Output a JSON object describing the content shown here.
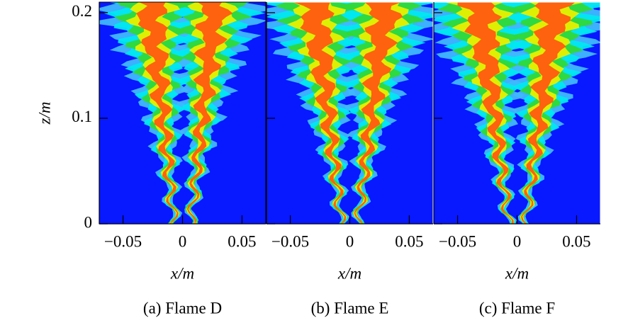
{
  "chart_data": [
    {
      "type": "contour",
      "title": "(a) Flame D",
      "xlabel": "x/m",
      "ylabel": "z/m",
      "xlim": [
        -0.07,
        0.07
      ],
      "ylim": [
        0,
        0.21
      ],
      "xticks": [
        {
          "value": -0.05,
          "label": "−0.05"
        },
        0,
        0.05
      ],
      "yticks": [
        0,
        0.1,
        0.2
      ]
    },
    {
      "type": "contour",
      "title": "(b) Flame E",
      "xlabel": "x/m",
      "xlim": [
        -0.07,
        0.07
      ],
      "ylim": [
        0,
        0.21
      ],
      "xticks": [
        {
          "value": -0.05,
          "label": "−0.05"
        },
        0,
        0.05
      ]
    },
    {
      "type": "contour",
      "title": "(c) Flame F",
      "xlabel": "x/m",
      "xlim": [
        -0.07,
        0.07
      ],
      "ylim": [
        0,
        0.21
      ],
      "xticks": [
        {
          "value": -0.05,
          "label": "−0.05"
        },
        0,
        0.05
      ]
    }
  ]
}
